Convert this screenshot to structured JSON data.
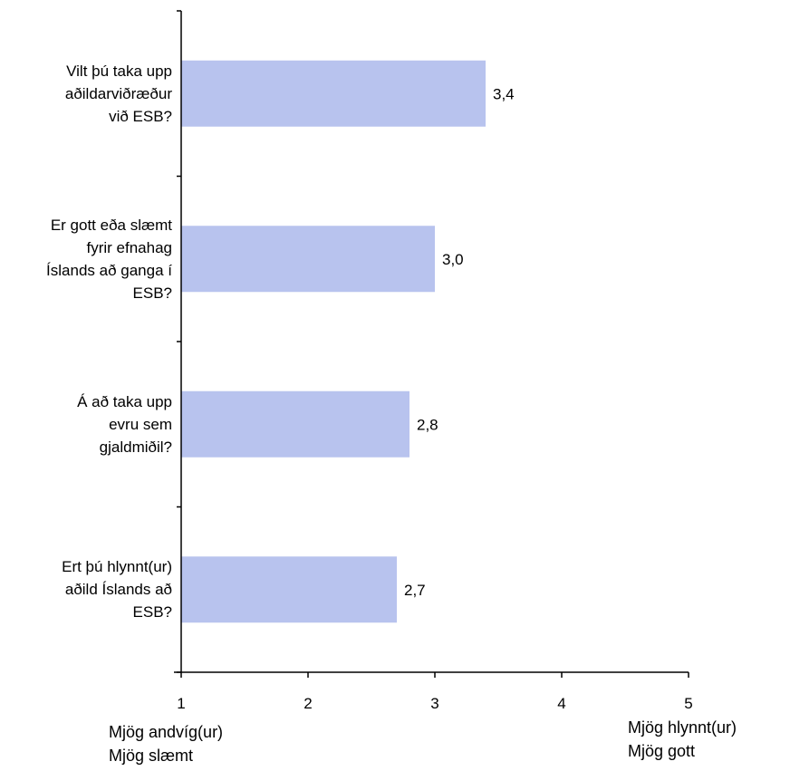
{
  "chart_data": {
    "type": "bar",
    "orientation": "horizontal",
    "categories": [
      "Vilt þú taka upp aðildarviðræður við ESB?",
      "Er gott eða slæmt fyrir efnahag Íslands að ganga í ESB?",
      "Á að taka upp evru sem gjaldmiðil?",
      "Ert þú hlynnt(ur) aðild Íslands að ESB?"
    ],
    "category_lines": [
      [
        "Vilt þú taka upp",
        "aðildarviðræður",
        "við ESB?"
      ],
      [
        "Er gott eða slæmt",
        "fyrir efnahag",
        "Íslands að ganga í",
        "ESB?"
      ],
      [
        "Á að taka upp",
        "evru sem",
        "gjaldmiðil?"
      ],
      [
        "Ert þú hlynnt(ur)",
        "aðild Íslands að",
        "ESB?"
      ]
    ],
    "values": [
      3.4,
      3.0,
      2.8,
      2.7
    ],
    "value_labels": [
      "3,4",
      "3,0",
      "2,8",
      "2,7"
    ],
    "xlim": [
      1,
      5
    ],
    "xticks": [
      1,
      2,
      3,
      4,
      5
    ],
    "bar_color": "#b8c3ee",
    "grid": false,
    "scale_left": [
      "Mjög andvíg(ur)",
      "Mjög slæmt"
    ],
    "scale_right": [
      "Mjög hlynnt(ur)",
      "Mjög gott"
    ]
  }
}
